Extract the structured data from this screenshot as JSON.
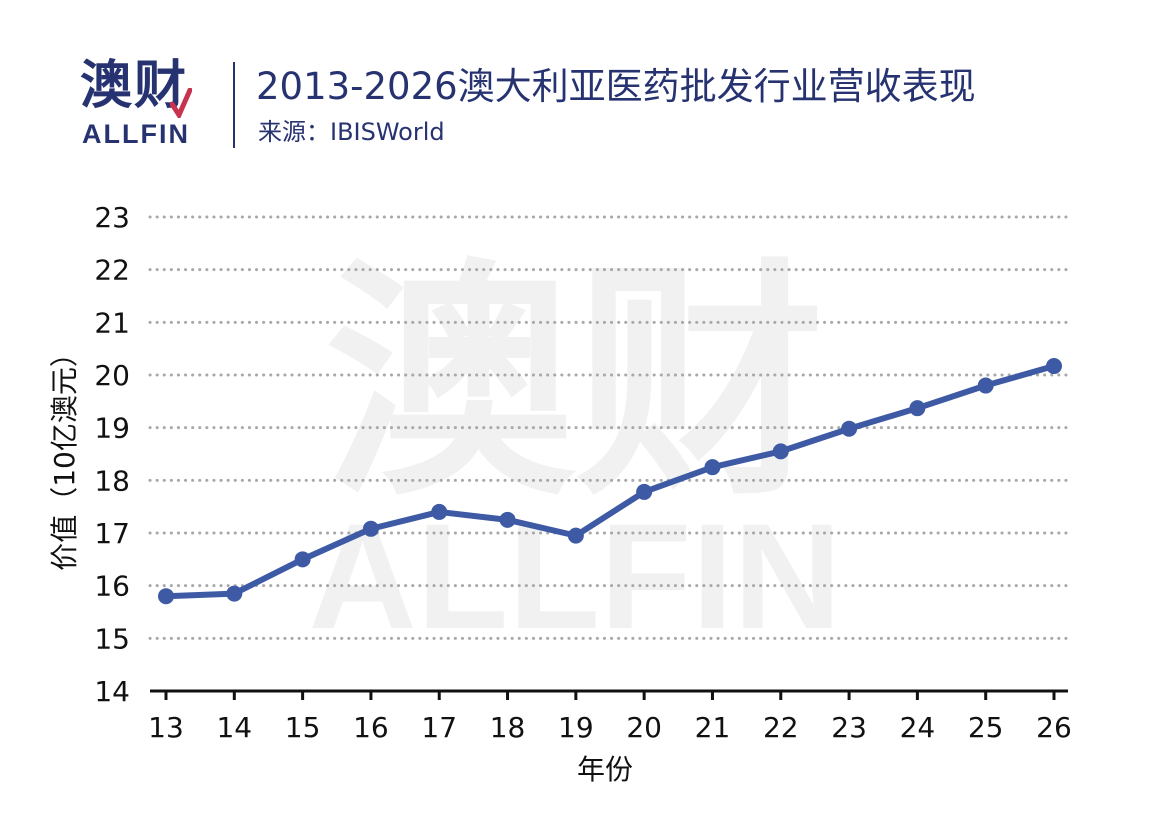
{
  "header": {
    "logo_cn": "澳财",
    "logo_en": "ALLFIN",
    "title": "2013-2026澳大利亚医药批发行业营收表现",
    "source": "来源：IBISWorld"
  },
  "watermark": {
    "cn": "澳财",
    "en": "ALLFIN"
  },
  "colors": {
    "brand": "#273371",
    "accent": "#c8334f",
    "line": "#3e5aa5",
    "grid": "#a8a8a8"
  },
  "chart_data": {
    "type": "line",
    "title": "2013-2026澳大利亚医药批发行业营收表现",
    "xlabel": "年份",
    "ylabel": "价值（10亿澳元）",
    "categories": [
      "13",
      "14",
      "15",
      "16",
      "17",
      "18",
      "19",
      "20",
      "21",
      "22",
      "23",
      "24",
      "25",
      "26"
    ],
    "values": [
      15.8,
      15.85,
      16.5,
      17.08,
      17.4,
      17.25,
      16.95,
      17.78,
      18.25,
      18.55,
      18.98,
      19.37,
      19.8,
      20.17
    ],
    "ylim": [
      14,
      23
    ],
    "yticks": [
      "14",
      "15",
      "16",
      "17",
      "18",
      "19",
      "20",
      "21",
      "22",
      "23"
    ],
    "grid": true,
    "legend": "none"
  }
}
